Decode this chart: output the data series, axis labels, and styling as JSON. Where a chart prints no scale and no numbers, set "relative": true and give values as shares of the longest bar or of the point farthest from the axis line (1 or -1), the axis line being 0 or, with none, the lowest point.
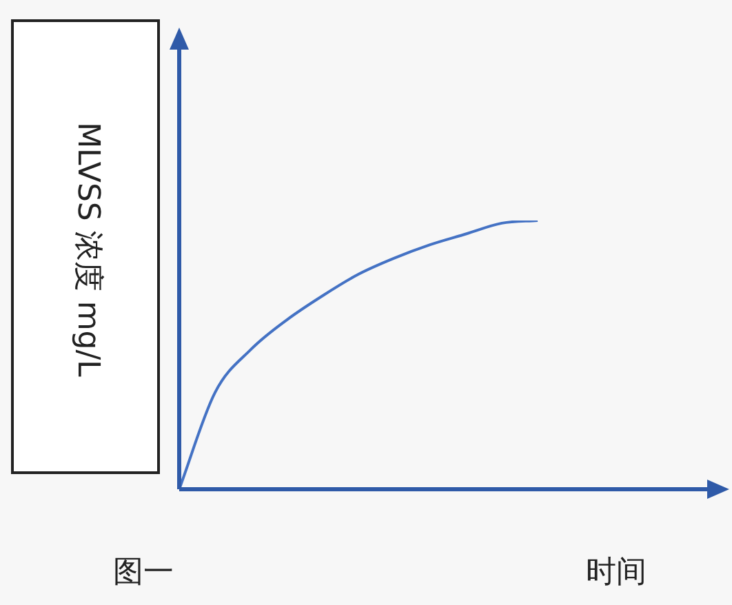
{
  "chart_data": {
    "type": "line",
    "relative": true,
    "categories": [
      null,
      null,
      null,
      null,
      null,
      null,
      null,
      null,
      null,
      null,
      null,
      null,
      null,
      null,
      null,
      null
    ],
    "values": [
      0,
      0.36,
      0.52,
      0.63,
      0.72,
      0.8,
      0.86,
      0.91,
      0.95,
      0.99,
      1.0,
      null,
      null,
      null,
      null,
      null
    ],
    "color": "#4472c4",
    "marker": "none",
    "xlabel": "时间",
    "ylabel": "MLVSS 浓度 mg/L",
    "annotations": [
      "图一"
    ]
  }
}
